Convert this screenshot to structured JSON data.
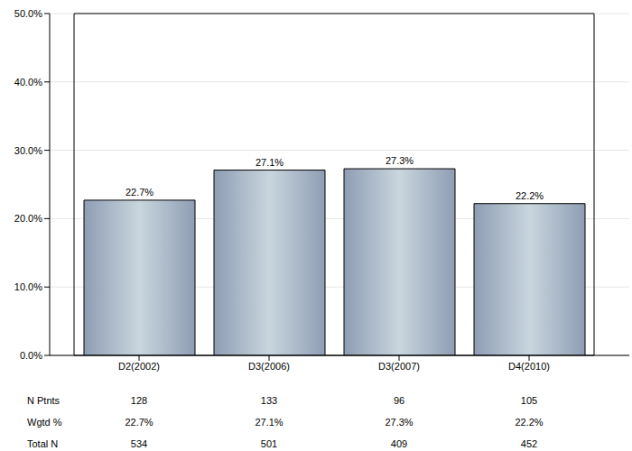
{
  "chart_data": {
    "type": "bar",
    "categories": [
      "D2(2002)",
      "D3(2006)",
      "D3(2007)",
      "D4(2010)"
    ],
    "values": [
      22.7,
      27.1,
      27.3,
      22.2
    ],
    "value_labels": [
      "22.7%",
      "27.1%",
      "27.3%",
      "22.2%"
    ],
    "data_labels": true,
    "color": "#8e9db3",
    "ylim": [
      0,
      50
    ],
    "yticks": [
      {
        "value": 0,
        "label": "0.0%"
      },
      {
        "value": 10,
        "label": "10.0%"
      },
      {
        "value": 20,
        "label": "20.0%"
      },
      {
        "value": 30,
        "label": "30.0%"
      },
      {
        "value": 40,
        "label": "40.0%"
      },
      {
        "value": 50,
        "label": "50.0%"
      }
    ],
    "grid": true,
    "table": [
      {
        "label": "N Ptnts",
        "values": [
          "128",
          "133",
          "96",
          "105"
        ]
      },
      {
        "label": "Wgtd %",
        "values": [
          "22.7%",
          "27.1%",
          "27.3%",
          "22.2%"
        ]
      },
      {
        "label": "Total N",
        "values": [
          "534",
          "501",
          "409",
          "452"
        ]
      }
    ]
  }
}
